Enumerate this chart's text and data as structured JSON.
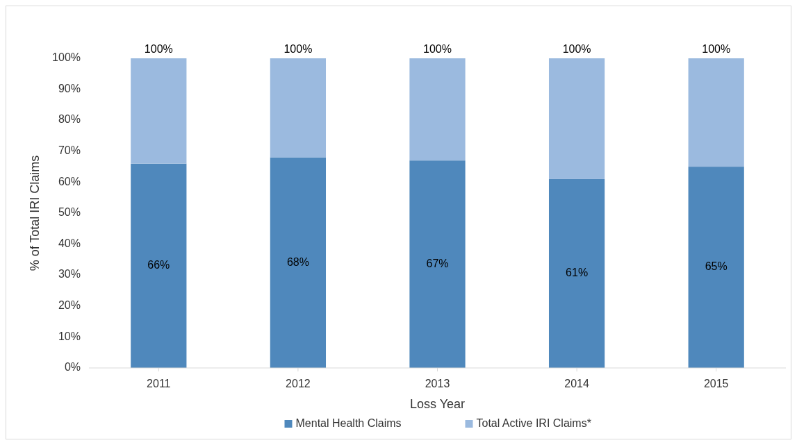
{
  "chart_data": {
    "type": "bar",
    "stacked": true,
    "xlabel": "Loss Year",
    "ylabel": "% of Total IRI Claims",
    "categories": [
      "2011",
      "2012",
      "2013",
      "2014",
      "2015"
    ],
    "series": [
      {
        "name": "Mental Health Claims",
        "color": "#4f88bc",
        "values": [
          66,
          68,
          67,
          61,
          65
        ],
        "value_labels": [
          "66%",
          "68%",
          "67%",
          "61%",
          "65%"
        ]
      },
      {
        "name": "Total Active IRI Claims*",
        "color": "#9bbadf",
        "values": [
          34,
          32,
          33,
          39,
          35
        ]
      }
    ],
    "totals": [
      "100%",
      "100%",
      "100%",
      "100%",
      "100%"
    ],
    "ylim": [
      0,
      100
    ],
    "yticks": [
      {
        "value": 0,
        "label": "0%"
      },
      {
        "value": 10,
        "label": "10%"
      },
      {
        "value": 20,
        "label": "20%"
      },
      {
        "value": 30,
        "label": "30%"
      },
      {
        "value": 40,
        "label": "40%"
      },
      {
        "value": 50,
        "label": "50%"
      },
      {
        "value": 60,
        "label": "60%"
      },
      {
        "value": 70,
        "label": "70%"
      },
      {
        "value": 80,
        "label": "80%"
      },
      {
        "value": 90,
        "label": "90%"
      },
      {
        "value": 100,
        "label": "100%"
      }
    ],
    "grid": false,
    "legend": "bottom"
  }
}
